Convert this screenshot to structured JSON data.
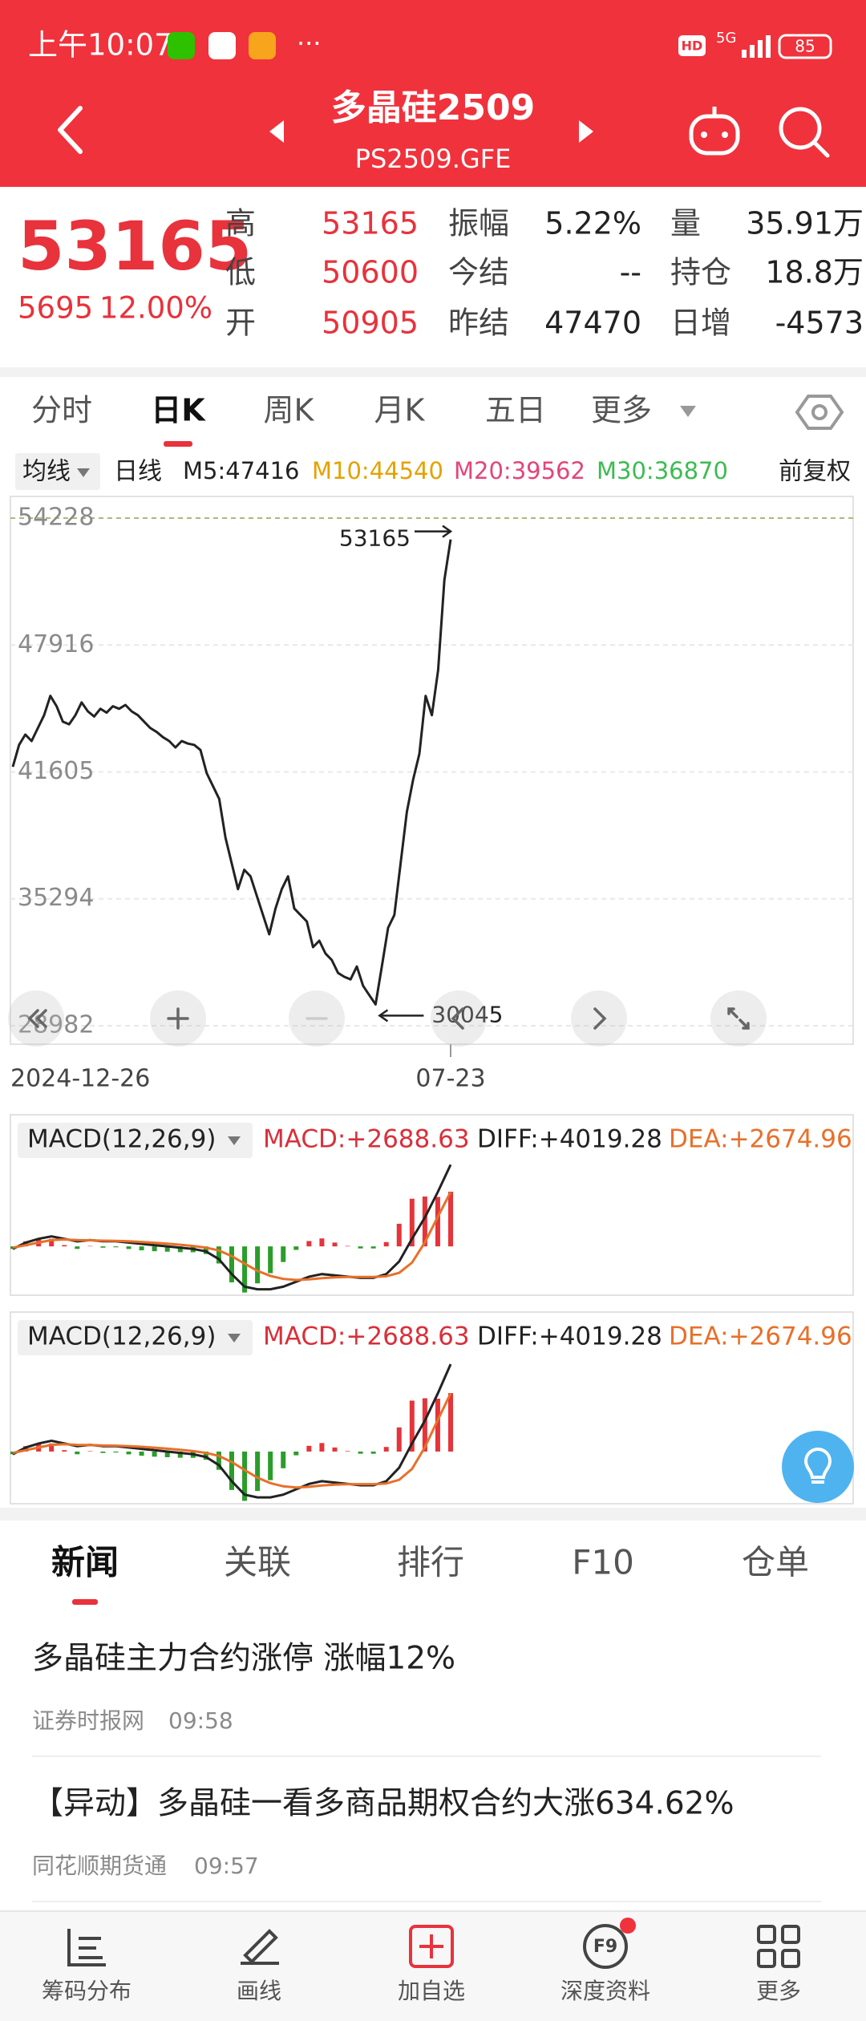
{
  "status_bar": {
    "time": "上午10:07",
    "more": "···",
    "hd": "HD",
    "network": "5G",
    "battery": "85"
  },
  "header": {
    "title": "多晶硅2509",
    "code": "PS2509.GFE"
  },
  "quote": {
    "price": "53165",
    "change": "5695",
    "change_pct": "12.00%",
    "color": "#e8323c",
    "fields": [
      {
        "label": "高",
        "value": "53165",
        "color": "#e8323c"
      },
      {
        "label": "振幅",
        "value": "5.22%",
        "color": "#222222"
      },
      {
        "label": "量",
        "value": "35.91万",
        "color": "#222222"
      },
      {
        "label": "低",
        "value": "50600",
        "color": "#e8323c"
      },
      {
        "label": "今结",
        "value": "--",
        "color": "#222222"
      },
      {
        "label": "持仓",
        "value": "18.8万",
        "color": "#222222"
      },
      {
        "label": "开",
        "value": "50905",
        "color": "#e8323c"
      },
      {
        "label": "昨结",
        "value": "47470",
        "color": "#222222"
      },
      {
        "label": "日增",
        "value": "-4573",
        "color": "#222222"
      }
    ]
  },
  "period_tabs": {
    "items": [
      "分时",
      "日K",
      "周K",
      "月K",
      "五日",
      "更多"
    ],
    "active": 1
  },
  "indicator": {
    "ma_button": "均线",
    "period": "日线",
    "adjust": "前复权",
    "mas": [
      {
        "label": "M5:47416",
        "color": "#222222"
      },
      {
        "label": "M10:44540",
        "color": "#e5a100"
      },
      {
        "label": "M20:39562",
        "color": "#e2457b"
      },
      {
        "label": "M30:36870",
        "color": "#3dbb52"
      }
    ]
  },
  "chart_data": [
    {
      "type": "line",
      "categories": [
        "2024-12-26",
        null,
        null,
        null,
        null,
        null,
        null,
        null,
        null,
        null,
        null,
        null,
        null,
        null,
        null,
        null,
        null,
        null,
        null,
        null,
        null,
        null,
        null,
        null,
        null,
        null,
        null,
        null,
        null,
        null,
        null,
        null,
        null,
        null,
        null,
        null,
        null,
        null,
        null,
        null,
        null,
        null,
        null,
        null,
        null,
        null,
        null,
        null,
        null,
        null,
        null,
        null,
        null,
        null,
        null,
        null,
        null,
        null,
        null,
        null,
        null,
        null,
        null,
        null,
        null,
        null,
        null,
        null,
        null,
        null,
        "07-23"
      ],
      "series": [
        {
          "color": "#222222",
          "values": [
            41861,
            42950,
            43463,
            43142,
            43783,
            44424,
            45385,
            44872,
            44103,
            43975,
            44424,
            45065,
            44616,
            44360,
            44744,
            44552,
            44872,
            44744,
            44936,
            44616,
            44424,
            44103,
            43783,
            43591,
            43334,
            43142,
            42822,
            43142,
            43014,
            42950,
            42694,
            41540,
            40899,
            40259,
            38336,
            37055,
            35773,
            36734,
            36414,
            35453,
            34491,
            33530,
            34812,
            35773,
            36414,
            34812,
            34491,
            34171,
            32889,
            33210,
            32569,
            32249,
            31608,
            31416,
            31287,
            31928,
            30967,
            30500,
            30045,
            31928,
            33851,
            34491,
            37055,
            39618,
            41220,
            42501,
            45385,
            44424,
            46667,
            51152,
            53165
          ]
        }
      ],
      "ylim": [
        28065,
        55305
      ],
      "yticks": [
        28982,
        35294,
        41605,
        47916,
        54228
      ],
      "grid": true,
      "annotations": [
        {
          "text": "53165"
        },
        {
          "text": "30045"
        }
      ]
    },
    {
      "type": "macd",
      "ylim": [
        -2400,
        4500
      ],
      "diff": {
        "color": "#222222",
        "values": [
          -124,
          186,
          372,
          496,
          372,
          248,
          310,
          248,
          248,
          186,
          124,
          62,
          0,
          -62,
          -124,
          -248,
          -620,
          -1364,
          -1984,
          -2108,
          -2108,
          -1984,
          -1736,
          -1488,
          -1364,
          -1426,
          -1488,
          -1550,
          -1550,
          -1364,
          -744,
          372,
          1426,
          2666,
          4019
        ]
      },
      "dea": {
        "color": "#e8702a",
        "values": [
          -62,
          62,
          186,
          310,
          340,
          310,
          300,
          280,
          270,
          250,
          220,
          180,
          130,
          80,
          20,
          -60,
          -200,
          -480,
          -850,
          -1200,
          -1450,
          -1600,
          -1650,
          -1620,
          -1560,
          -1520,
          -1500,
          -1500,
          -1500,
          -1470,
          -1300,
          -800,
          200,
          1450,
          2675
        ]
      },
      "macd": {
        "up_color": "#e5343a",
        "down_color": "#2a9d2a",
        "values": [
          -124,
          248,
          372,
          372,
          64,
          -124,
          20,
          -64,
          -44,
          -128,
          -192,
          -236,
          -260,
          -284,
          -288,
          -376,
          -840,
          -1768,
          -2268,
          -1816,
          -1316,
          -768,
          -172,
          264,
          392,
          188,
          24,
          -100,
          -100,
          212,
          1112,
          2344,
          2452,
          2432,
          2689
        ]
      }
    }
  ],
  "macd_panels": [
    {
      "selector": "MACD(12,26,9)",
      "macd": "MACD:+2688.63",
      "diff": "DIFF:+4019.28",
      "dea": "DEA:+2674.96"
    },
    {
      "selector": "MACD(12,26,9)",
      "macd": "MACD:+2688.63",
      "diff": "DIFF:+4019.28",
      "dea": "DEA:+2674.96"
    }
  ],
  "news_tabs": {
    "items": [
      "新闻",
      "关联",
      "排行",
      "F10",
      "仓单"
    ],
    "active": 0
  },
  "news": [
    {
      "title": "多晶硅主力合约涨停 涨幅12%",
      "source": "证券时报网",
      "time": "09:58"
    },
    {
      "title": "【异动】多晶硅一看多商品期权合约大涨634.62%",
      "source": "同花顺期货通",
      "time": "09:57"
    }
  ],
  "bottom_nav": {
    "items": [
      "筹码分布",
      "画线",
      "加自选",
      "深度资料",
      "更多"
    ],
    "f9_icon": "F9"
  }
}
